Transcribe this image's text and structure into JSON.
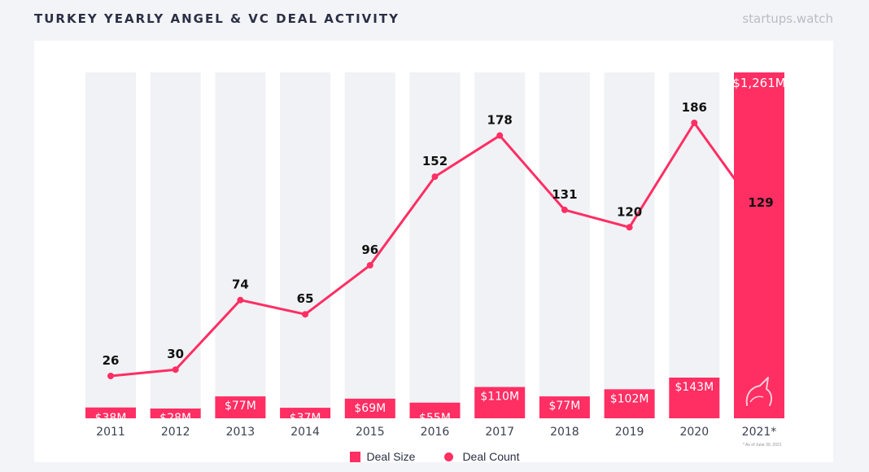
{
  "header": {
    "title": "TURKEY YEARLY ANGEL & VC DEAL ACTIVITY",
    "brand": "startups.watch"
  },
  "footnote": "* As of June 30, 2021",
  "colors": {
    "accent": "#ff2e63",
    "background_bar": "#f1f2f5",
    "text": "#2b2f45"
  },
  "icons": [
    "unicorn-icon"
  ],
  "chart_data": {
    "type": "bar",
    "title": "TURKEY YEARLY ANGEL & VC DEAL ACTIVITY",
    "categories": [
      "2011",
      "2012",
      "2013",
      "2014",
      "2015",
      "2016",
      "2017",
      "2018",
      "2019",
      "2020",
      "2021*"
    ],
    "series": [
      {
        "name": "Deal Size",
        "type": "bar",
        "values": [
          38,
          28,
          77,
          37,
          69,
          55,
          110,
          77,
          102,
          143,
          1261
        ],
        "labels": [
          "$38M",
          "$28M",
          "$77M",
          "$37M",
          "$69M",
          "$55M",
          "$110M",
          "$77M",
          "$102M",
          "$143M",
          "$1,261M"
        ]
      },
      {
        "name": "Deal Count",
        "type": "line",
        "values": [
          26,
          30,
          74,
          65,
          96,
          152,
          178,
          131,
          120,
          186,
          129
        ]
      }
    ],
    "legend": {
      "position": "bottom-center",
      "items": [
        "Deal Size",
        "Deal Count"
      ]
    },
    "grid": false
  }
}
